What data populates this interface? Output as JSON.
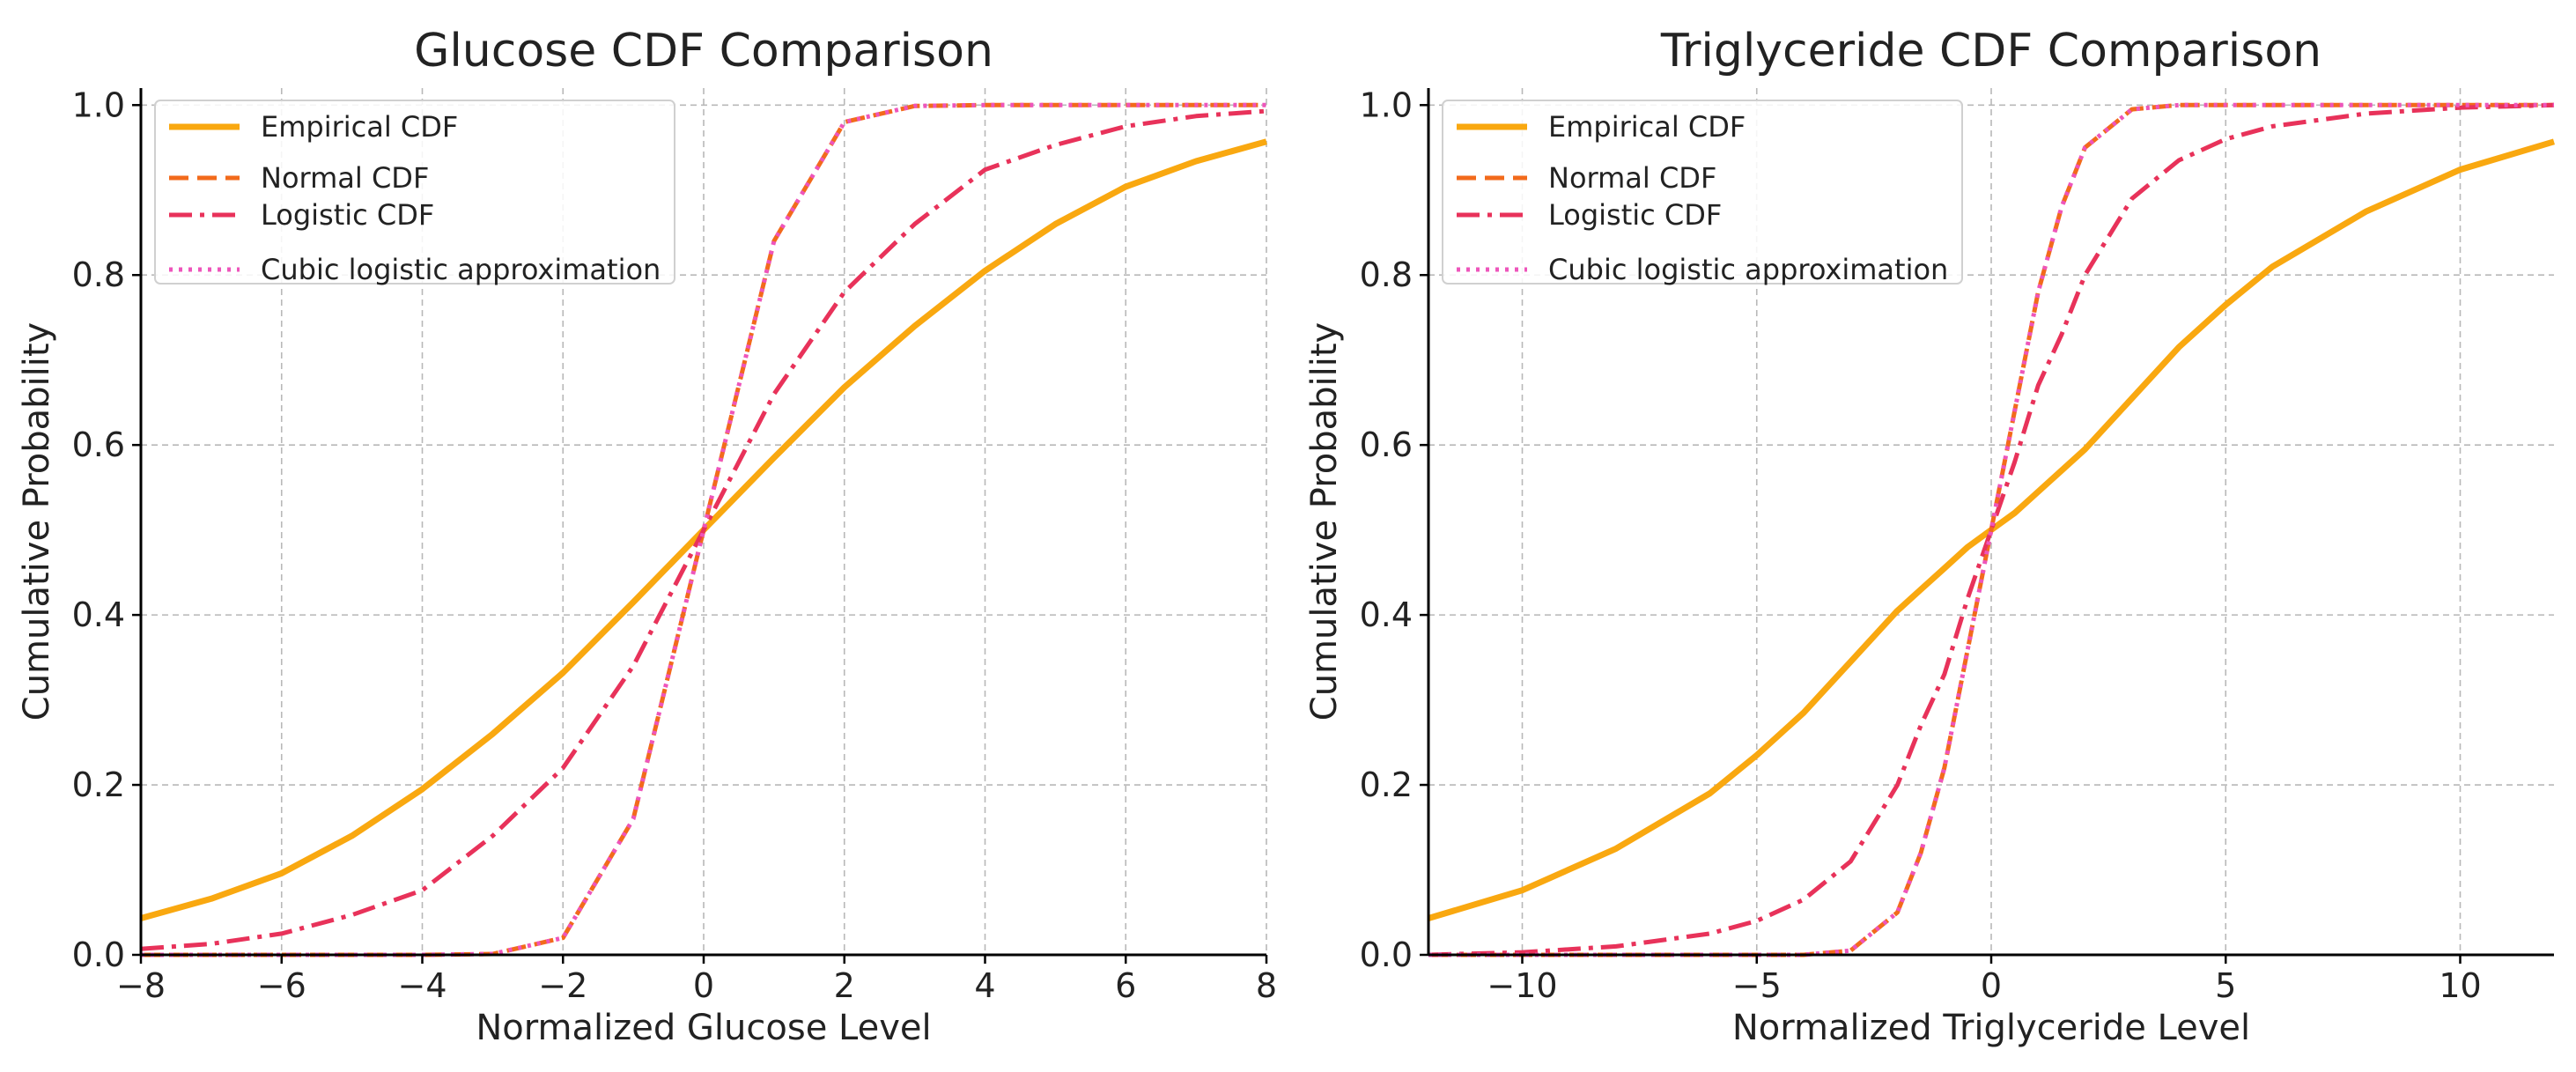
{
  "colors": {
    "empirical": "#F9A810",
    "normal": "#F26A1B",
    "logistic": "#E8325A",
    "cubic": "#EE55BB"
  },
  "chart_data": [
    {
      "type": "line",
      "title": "Glucose CDF Comparison",
      "xlabel": "Normalized Glucose Level",
      "ylabel": "Cumulative Probability",
      "xlim": [
        -8,
        8
      ],
      "ylim": [
        0,
        1.02
      ],
      "xticks": [
        -8,
        -6,
        -4,
        -2,
        0,
        2,
        4,
        6,
        8
      ],
      "xtick_labels": [
        "−8",
        "−6",
        "−4",
        "−2",
        "0",
        "2",
        "4",
        "6",
        "8"
      ],
      "yticks": [
        0,
        0.2,
        0.4,
        0.6,
        0.8,
        1.0
      ],
      "ytick_labels": [
        "0.0",
        "0.2",
        "0.4",
        "0.6",
        "0.8",
        "1.0"
      ],
      "grid": true,
      "legend_position": "top-left",
      "x": [
        -8,
        -7,
        -6,
        -5,
        -4,
        -3,
        -2,
        -1,
        0,
        1,
        2,
        3,
        4,
        5,
        6,
        7,
        8
      ],
      "series": [
        {
          "name": "Empirical CDF",
          "style": "solid",
          "color_key": "empirical",
          "values": [
            0.043,
            0.066,
            0.096,
            0.14,
            0.195,
            0.26,
            0.332,
            0.415,
            0.5,
            0.585,
            0.668,
            0.74,
            0.805,
            0.86,
            0.904,
            0.934,
            0.957
          ]
        },
        {
          "name": "Normal CDF",
          "style": "dashed",
          "color_key": "normal",
          "values": [
            0.0,
            0.0,
            0.0,
            0.0,
            0.0,
            0.001,
            0.02,
            0.16,
            0.5,
            0.84,
            0.98,
            0.999,
            1.0,
            1.0,
            1.0,
            1.0,
            1.0
          ]
        },
        {
          "name": "Logistic CDF",
          "style": "dashdot",
          "color_key": "logistic",
          "values": [
            0.007,
            0.013,
            0.025,
            0.047,
            0.076,
            0.14,
            0.22,
            0.34,
            0.5,
            0.66,
            0.78,
            0.86,
            0.924,
            0.953,
            0.975,
            0.987,
            0.993
          ]
        },
        {
          "name": "Cubic logistic approximation",
          "style": "dotted",
          "color_key": "cubic",
          "values": [
            0.0,
            0.0,
            0.0,
            0.0,
            0.0,
            0.001,
            0.02,
            0.16,
            0.5,
            0.84,
            0.98,
            0.999,
            1.0,
            1.0,
            1.0,
            1.0,
            1.0
          ]
        }
      ]
    },
    {
      "type": "line",
      "title": "Triglyceride CDF Comparison",
      "xlabel": "Normalized Triglyceride Level",
      "ylabel": "Cumulative Probability",
      "xlim": [
        -12,
        12
      ],
      "ylim": [
        0,
        1.02
      ],
      "xticks": [
        -10,
        -5,
        0,
        5,
        10
      ],
      "xtick_labels": [
        "−10",
        "−5",
        "0",
        "5",
        "10"
      ],
      "yticks": [
        0,
        0.2,
        0.4,
        0.6,
        0.8,
        1.0
      ],
      "ytick_labels": [
        "0.0",
        "0.2",
        "0.4",
        "0.6",
        "0.8",
        "1.0"
      ],
      "grid": true,
      "legend_position": "top-left",
      "x": [
        -12,
        -10,
        -8,
        -6,
        -5,
        -4,
        -3,
        -2,
        -1.5,
        -1,
        -0.5,
        0,
        0.5,
        1,
        1.5,
        2,
        3,
        4,
        5,
        6,
        8,
        10,
        12
      ],
      "series": [
        {
          "name": "Empirical CDF",
          "style": "solid",
          "color_key": "empirical",
          "values": [
            0.043,
            0.076,
            0.125,
            0.19,
            0.235,
            0.285,
            0.345,
            0.405,
            0.43,
            0.455,
            0.48,
            0.5,
            0.52,
            0.545,
            0.57,
            0.595,
            0.655,
            0.715,
            0.765,
            0.81,
            0.875,
            0.924,
            0.957
          ]
        },
        {
          "name": "Normal CDF",
          "style": "dashed",
          "color_key": "normal",
          "values": [
            0.0,
            0.0,
            0.0,
            0.0,
            0.0,
            0.0,
            0.005,
            0.05,
            0.12,
            0.22,
            0.36,
            0.5,
            0.64,
            0.78,
            0.88,
            0.95,
            0.995,
            1.0,
            1.0,
            1.0,
            1.0,
            1.0,
            1.0
          ]
        },
        {
          "name": "Logistic CDF",
          "style": "dashdot",
          "color_key": "logistic",
          "values": [
            0.0,
            0.003,
            0.01,
            0.025,
            0.04,
            0.065,
            0.11,
            0.2,
            0.27,
            0.33,
            0.42,
            0.5,
            0.58,
            0.67,
            0.73,
            0.8,
            0.89,
            0.935,
            0.96,
            0.975,
            0.99,
            0.997,
            1.0
          ]
        },
        {
          "name": "Cubic logistic approximation",
          "style": "dotted",
          "color_key": "cubic",
          "values": [
            0.0,
            0.0,
            0.0,
            0.0,
            0.0,
            0.0,
            0.005,
            0.05,
            0.12,
            0.22,
            0.36,
            0.5,
            0.64,
            0.78,
            0.88,
            0.95,
            0.995,
            1.0,
            1.0,
            1.0,
            1.0,
            1.0,
            1.0
          ]
        }
      ]
    }
  ]
}
